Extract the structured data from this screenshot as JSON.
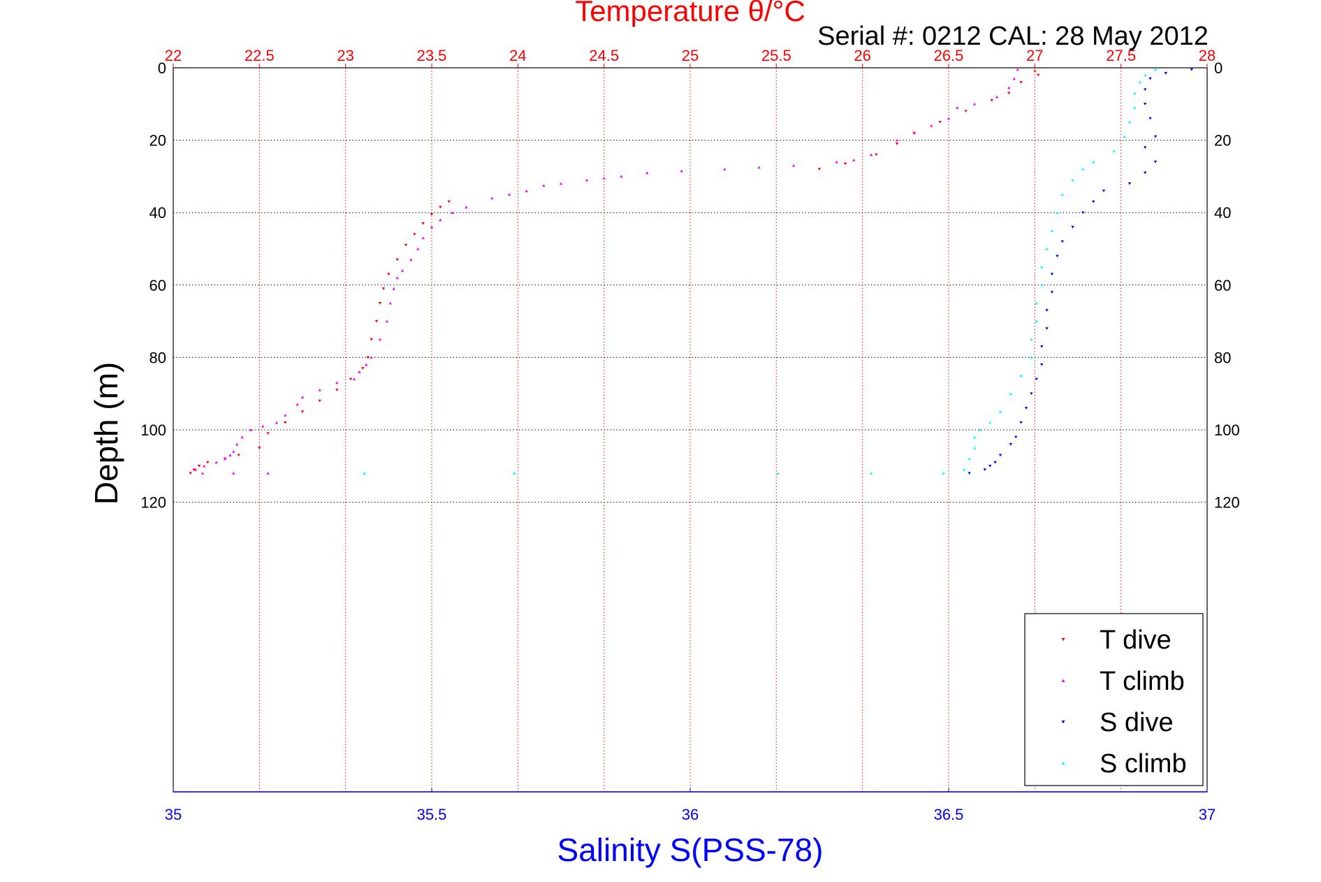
{
  "chart_data": {
    "type": "scatter",
    "title": "Temperature θ/°C",
    "subtitle": "Serial #: 0212  CAL: 28 May 2012",
    "xlabel": "Salinity S(PSS-78)",
    "ylabel": "Depth (m)",
    "x_top": {
      "label": "Temperature θ/°C",
      "range": [
        22,
        28
      ],
      "ticks": [
        "22",
        "22.5",
        "23",
        "23.5",
        "24",
        "24.5",
        "25",
        "25.5",
        "26",
        "26.5",
        "27",
        "27.5",
        "28"
      ],
      "color": "#ff0000"
    },
    "x_bottom": {
      "label": "Salinity S(PSS-78)",
      "range": [
        35,
        37
      ],
      "ticks": [
        "35",
        "35.5",
        "36",
        "36.5",
        "37"
      ],
      "color": "#0000ff"
    },
    "y": {
      "label": "Depth (m)",
      "range": [
        0,
        200
      ],
      "reversed": true,
      "ticks": [
        "0",
        "20",
        "40",
        "60",
        "80",
        "100",
        "120"
      ]
    },
    "grid": true,
    "legend_position": "bottom-right",
    "series": [
      {
        "name": "T dive",
        "axis": "temperature",
        "color": "#ff0000",
        "marker": "triangle-down",
        "points": [
          [
            27.0,
            1
          ],
          [
            27.02,
            2
          ],
          [
            26.92,
            4
          ],
          [
            26.85,
            7
          ],
          [
            26.75,
            9
          ],
          [
            26.6,
            12
          ],
          [
            26.45,
            15
          ],
          [
            26.3,
            18
          ],
          [
            26.2,
            21
          ],
          [
            26.08,
            24
          ],
          [
            25.9,
            26.5
          ],
          [
            25.75,
            28
          ],
          [
            23.6,
            37
          ],
          [
            23.55,
            38.5
          ],
          [
            23.5,
            40.5
          ],
          [
            23.45,
            43
          ],
          [
            23.4,
            46
          ],
          [
            23.35,
            49
          ],
          [
            23.3,
            53
          ],
          [
            23.25,
            57
          ],
          [
            23.22,
            61
          ],
          [
            23.2,
            65
          ],
          [
            23.18,
            70
          ],
          [
            23.15,
            75
          ],
          [
            23.13,
            80
          ],
          [
            23.1,
            83
          ],
          [
            23.03,
            86
          ],
          [
            22.95,
            89
          ],
          [
            22.85,
            92
          ],
          [
            22.75,
            95
          ],
          [
            22.65,
            98
          ],
          [
            22.55,
            101
          ],
          [
            22.5,
            105
          ],
          [
            22.38,
            107
          ],
          [
            22.3,
            108
          ],
          [
            22.2,
            109
          ],
          [
            22.15,
            110
          ],
          [
            22.12,
            111
          ],
          [
            22.1,
            112
          ]
        ]
      },
      {
        "name": "T climb",
        "axis": "temperature",
        "color": "#ff00ff",
        "marker": "triangle-up",
        "points": [
          [
            26.9,
            0.5
          ],
          [
            26.88,
            3
          ],
          [
            26.85,
            5.5
          ],
          [
            26.78,
            8
          ],
          [
            26.65,
            10
          ],
          [
            26.55,
            11
          ],
          [
            26.5,
            14
          ],
          [
            26.4,
            16
          ],
          [
            26.3,
            18
          ],
          [
            26.2,
            20
          ],
          [
            26.05,
            24
          ],
          [
            25.95,
            25.5
          ],
          [
            25.85,
            26
          ],
          [
            25.6,
            27
          ],
          [
            25.4,
            27.5
          ],
          [
            25.2,
            28
          ],
          [
            24.95,
            28.5
          ],
          [
            24.75,
            29
          ],
          [
            24.6,
            30
          ],
          [
            24.5,
            30.5
          ],
          [
            24.4,
            31
          ],
          [
            24.25,
            32
          ],
          [
            24.15,
            32.5
          ],
          [
            24.05,
            34
          ],
          [
            23.95,
            35
          ],
          [
            23.85,
            36
          ],
          [
            23.7,
            38.5
          ],
          [
            23.62,
            40
          ],
          [
            23.55,
            42
          ],
          [
            23.5,
            44
          ],
          [
            23.45,
            47
          ],
          [
            23.42,
            50
          ],
          [
            23.38,
            53
          ],
          [
            23.33,
            56
          ],
          [
            23.3,
            58
          ],
          [
            23.28,
            61
          ],
          [
            23.26,
            65
          ],
          [
            23.24,
            70
          ],
          [
            23.2,
            75
          ],
          [
            23.15,
            80
          ],
          [
            23.12,
            82
          ],
          [
            23.08,
            84
          ],
          [
            23.05,
            86
          ],
          [
            22.95,
            87
          ],
          [
            22.85,
            89
          ],
          [
            22.75,
            91
          ],
          [
            22.72,
            93
          ],
          [
            22.65,
            96
          ],
          [
            22.6,
            98
          ],
          [
            22.52,
            99
          ],
          [
            22.45,
            100
          ],
          [
            22.4,
            102
          ],
          [
            22.37,
            104
          ],
          [
            22.35,
            106
          ],
          [
            22.33,
            107
          ],
          [
            22.3,
            108
          ],
          [
            22.25,
            109
          ],
          [
            22.18,
            110
          ],
          [
            22.13,
            111
          ],
          [
            22.17,
            112
          ],
          [
            22.35,
            112
          ],
          [
            22.55,
            112
          ]
        ]
      },
      {
        "name": "S dive",
        "axis": "salinity",
        "color": "#0000ff",
        "marker": "triangle-down",
        "points": [
          [
            36.97,
            0.5
          ],
          [
            36.92,
            1.5
          ],
          [
            36.89,
            3
          ],
          [
            36.88,
            6
          ],
          [
            36.88,
            10
          ],
          [
            36.89,
            14
          ],
          [
            36.9,
            19
          ],
          [
            36.88,
            22
          ],
          [
            36.9,
            26
          ],
          [
            36.88,
            29
          ],
          [
            36.85,
            32
          ],
          [
            36.8,
            34
          ],
          [
            36.78,
            37
          ],
          [
            36.76,
            40
          ],
          [
            36.74,
            44
          ],
          [
            36.72,
            48
          ],
          [
            36.71,
            52
          ],
          [
            36.7,
            57
          ],
          [
            36.7,
            62
          ],
          [
            36.69,
            67
          ],
          [
            36.69,
            72
          ],
          [
            36.68,
            77
          ],
          [
            36.68,
            82
          ],
          [
            36.67,
            86
          ],
          [
            36.66,
            90
          ],
          [
            36.65,
            94
          ],
          [
            36.64,
            98
          ],
          [
            36.63,
            102
          ],
          [
            36.62,
            104
          ],
          [
            36.6,
            107
          ],
          [
            36.59,
            109
          ],
          [
            36.58,
            110
          ],
          [
            36.57,
            111
          ],
          [
            36.54,
            112
          ]
        ]
      },
      {
        "name": "S climb",
        "axis": "salinity",
        "color": "#00ffff",
        "marker": "triangle-up",
        "points": [
          [
            36.9,
            0.5
          ],
          [
            36.88,
            2
          ],
          [
            36.87,
            4
          ],
          [
            36.86,
            7
          ],
          [
            36.86,
            11
          ],
          [
            36.85,
            15
          ],
          [
            36.84,
            19
          ],
          [
            36.82,
            23
          ],
          [
            36.78,
            26
          ],
          [
            36.76,
            28
          ],
          [
            36.74,
            31
          ],
          [
            36.72,
            35
          ],
          [
            36.71,
            40
          ],
          [
            36.7,
            45
          ],
          [
            36.69,
            50
          ],
          [
            36.68,
            55
          ],
          [
            36.68,
            60
          ],
          [
            36.67,
            65
          ],
          [
            36.67,
            70
          ],
          [
            36.66,
            75
          ],
          [
            36.66,
            80
          ],
          [
            36.64,
            85
          ],
          [
            36.62,
            90
          ],
          [
            36.6,
            95
          ],
          [
            36.58,
            98
          ],
          [
            36.56,
            100
          ],
          [
            36.55,
            102
          ],
          [
            36.55,
            105
          ],
          [
            36.54,
            108
          ],
          [
            36.53,
            111
          ],
          [
            36.49,
            112
          ],
          [
            36.35,
            112
          ],
          [
            36.17,
            112
          ],
          [
            35.66,
            112
          ],
          [
            35.37,
            112
          ]
        ]
      }
    ]
  }
}
